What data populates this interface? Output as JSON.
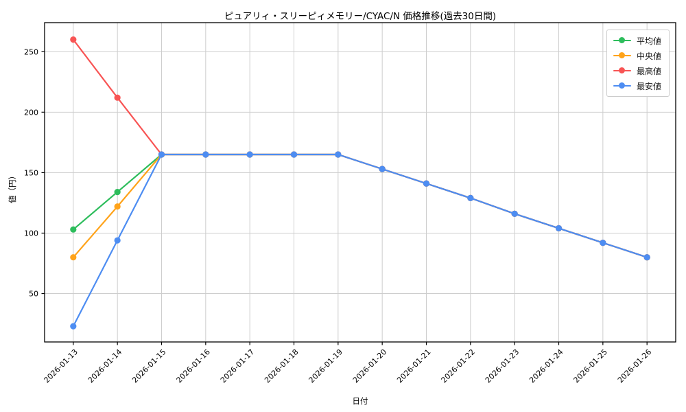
{
  "chart_data": {
    "type": "line",
    "title": "ピュアリィ・スリーピィメモリー/CYAC/N 価格推移(過去30日間)",
    "xlabel": "日付",
    "ylabel": "値（円）",
    "x": [
      "2026-01-13",
      "2026-01-14",
      "2026-01-15",
      "2026-01-16",
      "2026-01-17",
      "2026-01-18",
      "2026-01-19",
      "2026-01-20",
      "2026-01-21",
      "2026-01-22",
      "2026-01-23",
      "2026-01-24",
      "2026-01-25",
      "2026-01-26"
    ],
    "series": [
      {
        "id": "average",
        "name": "平均値",
        "color": "#2dbd5c",
        "values": [
          103,
          134,
          165,
          165,
          165,
          165,
          165,
          153,
          141,
          129,
          116,
          104,
          92,
          80
        ]
      },
      {
        "id": "median",
        "name": "中央値",
        "color": "#ffa31a",
        "values": [
          80,
          122,
          165,
          165,
          165,
          165,
          165,
          153,
          141,
          129,
          116,
          104,
          92,
          80
        ]
      },
      {
        "id": "max",
        "name": "最高値",
        "color": "#f85454",
        "values": [
          260,
          212,
          165,
          165,
          165,
          165,
          165,
          153,
          141,
          129,
          116,
          104,
          92,
          80
        ]
      },
      {
        "id": "min",
        "name": "最安値",
        "color": "#4d8df2",
        "values": [
          23,
          94,
          165,
          165,
          165,
          165,
          165,
          153,
          141,
          129,
          116,
          104,
          92,
          80
        ]
      }
    ],
    "yticks": [
      50,
      100,
      150,
      200,
      250
    ],
    "ylim": [
      10,
      274
    ],
    "grid": true,
    "grid_color": "#cdcdcd",
    "axis_color": "#000000",
    "legend_position": "upper right"
  }
}
